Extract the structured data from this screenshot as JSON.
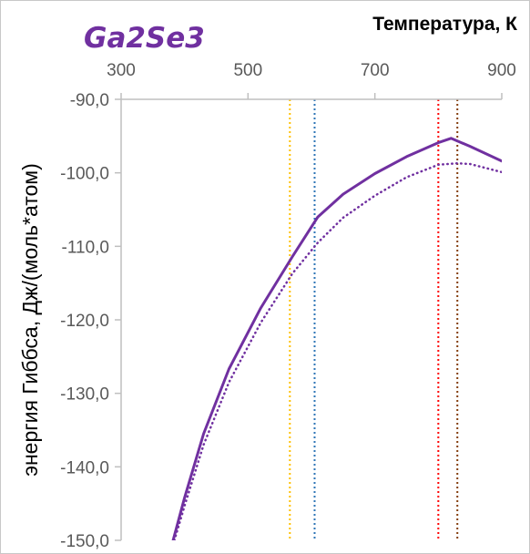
{
  "chart_data": {
    "type": "line",
    "title": "Ga2Se3",
    "xlabel": "Температура, К",
    "ylabel": "энергия Гиббса, Дж/(моль*атом)",
    "x_axis_position": "top",
    "xlim": [
      300,
      900
    ],
    "ylim": [
      -150,
      -90
    ],
    "xticks": [
      300,
      500,
      700,
      900
    ],
    "xtick_labels": [
      "300",
      "500",
      "700",
      "900"
    ],
    "yticks": [
      -90,
      -100,
      -110,
      -120,
      -130,
      -140,
      -150
    ],
    "ytick_labels": [
      "-90,0",
      "-100,0",
      "-110,0",
      "-120,0",
      "-130,0",
      "-140,0",
      "-150,0"
    ],
    "grid": false,
    "legend": "none",
    "series": [
      {
        "color": "#7030a0",
        "style": "solid",
        "x": [
          382,
          400,
          430,
          470,
          520,
          570,
          610,
          650,
          700,
          750,
          800,
          820,
          850,
          900
        ],
        "y": [
          -150,
          -144.2,
          -135.5,
          -126.7,
          -118.4,
          -111.4,
          -106.0,
          -102.9,
          -100.1,
          -97.8,
          -95.9,
          -95.3,
          -96.4,
          -98.4
        ]
      },
      {
        "color": "#7030a0",
        "style": "dotted",
        "x": [
          384,
          400,
          430,
          470,
          520,
          570,
          610,
          650,
          700,
          750,
          800,
          830,
          850,
          900
        ],
        "y": [
          -150,
          -145.3,
          -137.0,
          -128.5,
          -120.4,
          -113.7,
          -109.5,
          -106.1,
          -103.1,
          -100.6,
          -98.9,
          -98.7,
          -98.8,
          -99.9
        ]
      }
    ],
    "vlines": [
      {
        "x": 566,
        "color": "#ffc000",
        "style": "dotted"
      },
      {
        "x": 605,
        "color": "#2e75b6",
        "style": "dotted"
      },
      {
        "x": 800,
        "color": "#ff0000",
        "style": "dotted"
      },
      {
        "x": 830,
        "color": "#833c0b",
        "style": "dotted"
      }
    ]
  }
}
